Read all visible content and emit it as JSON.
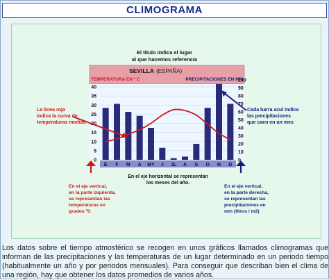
{
  "page_title": "CLIMOGRAMA",
  "top_note": [
    "El titulo indica el lugar",
    "al que hacemos referencia"
  ],
  "place": "SEVILLA",
  "place_suffix": "(ESPAÑA)",
  "left_axis_label": "TEMPERATURA EN º C",
  "right_axis_label": "PRECIPITACIONES EN MM",
  "left_note": [
    "La linea roja",
    "indica la curva de",
    "temperaturas medias"
  ],
  "right_note": [
    "Cada barra azul indica",
    "las precipitaciones",
    "que caen en un mes"
  ],
  "bottom_center_note": [
    "En el eje horizontal se representan",
    "los meses del año."
  ],
  "bottom_left_note": [
    "En el eje vertical,",
    "en la parte izquierda,",
    "se representan las",
    "temperaturas en",
    "grados ºC"
  ],
  "bottom_right_note": [
    "En el eje vertical,",
    "en la parte derecha,",
    "se representan las",
    "precipitaciones en",
    "mm (litros / m2)"
  ],
  "caption": "Los datos sobre el tiempo atmosférico se recogen en unos gráficos llamados climogramas que informan de las precipitaciones y las temperaturas de un lugar determinado en un periodo tiempo (habitualmente un año y por periodos mensuales). Para conseguir que describan bien el clima de una región, hay que obtener los datos promedios de varios años.",
  "colors": {
    "bar": "#2a2a7a",
    "temperature_line": "#cc1a1a",
    "arrow_left": "#cc1a1a",
    "arrow_right": "#1a1a7a",
    "header_bg": "#e8a0a8",
    "month_bar_bg": "#8a8ad0",
    "title_text": "#1a2a8a"
  },
  "chart_data": {
    "type": "bar",
    "categories": [
      "E",
      "F",
      "M",
      "A",
      "MY",
      "J",
      "JL",
      "A",
      "S",
      "O",
      "N",
      "D"
    ],
    "series": [
      {
        "values": [
          65,
          70,
          60,
          55,
          40,
          15,
          2,
          4,
          20,
          65,
          95,
          70
        ]
      },
      {
        "values": [
          10,
          11.5,
          14,
          16.5,
          20,
          24.5,
          27.5,
          27,
          24.5,
          19.5,
          14.5,
          11
        ]
      }
    ],
    "ylim_left": [
      0,
      40
    ],
    "ylim_right": [
      0,
      100
    ],
    "yticks_left": [
      0,
      5,
      10,
      15,
      20,
      25,
      30,
      35,
      40
    ],
    "yticks_right": [
      0,
      10,
      20,
      30,
      40,
      50,
      60,
      70,
      80,
      90,
      100
    ],
    "grid": true,
    "legend": "none"
  }
}
